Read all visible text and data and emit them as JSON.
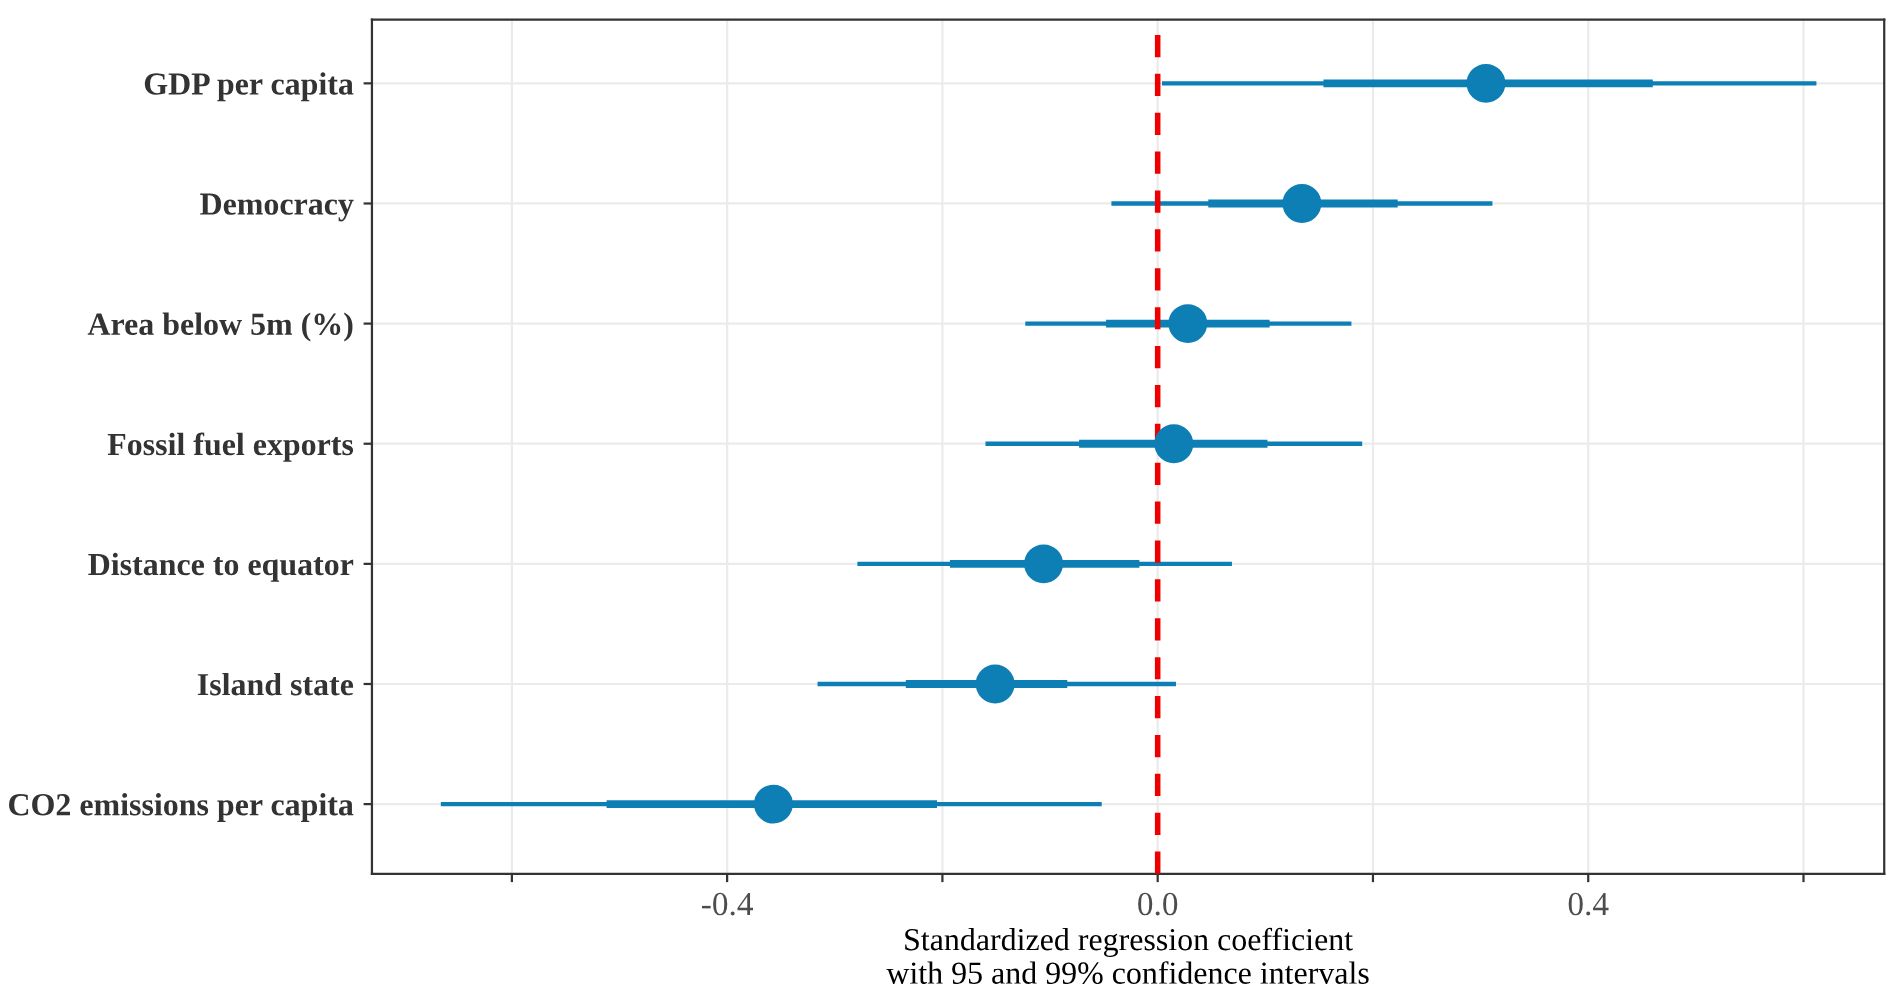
{
  "chart_data": {
    "type": "scatter",
    "orientation": "horizontal",
    "xlabel": "Standardized regression coefficient\nwith 95 and 99% confidence intervals",
    "categories": [
      "GDP per capita",
      "Democracy",
      "Area below 5m (%)",
      "Fossil fuel exports",
      "Distance to equator",
      "Island state",
      "CO2 emissions per capita"
    ],
    "series": [
      {
        "color": "#0e7fb5",
        "marker": "circle",
        "line_style": "solid",
        "values": [
          0.305,
          0.134,
          0.028,
          0.015,
          -0.106,
          -0.151,
          -0.357
        ],
        "errors": [
          [
            0.004,
            0.612
          ],
          [
            -0.043,
            0.311
          ],
          [
            -0.123,
            0.18
          ],
          [
            -0.16,
            0.19
          ],
          [
            -0.279,
            0.069
          ],
          [
            -0.316,
            0.017
          ],
          [
            -0.666,
            -0.052
          ]
        ]
      },
      {
        "type": "bar",
        "color": "#0e7fb5",
        "base": [
          0.154,
          0.047,
          -0.048,
          -0.073,
          -0.193,
          -0.234,
          -0.512
        ],
        "values": [
          0.306,
          0.176,
          0.152,
          0.175,
          0.176,
          0.15,
          0.307
        ]
      }
    ],
    "xlim": [
      -0.73,
      0.675
    ],
    "xticks": [
      {
        "value": -0.6,
        "label": null
      },
      -0.4,
      {
        "value": -0.2,
        "label": null
      },
      {
        "value": 0,
        "label": "0.0"
      },
      {
        "value": 0.2,
        "label": null
      },
      0.4,
      {
        "value": 0.6,
        "label": null
      }
    ],
    "ref_lines": [
      {
        "axis": "x",
        "value": 0,
        "label": null,
        "color": "#ee0000",
        "line_style": "dashed"
      }
    ],
    "grid": true,
    "legend": false
  }
}
